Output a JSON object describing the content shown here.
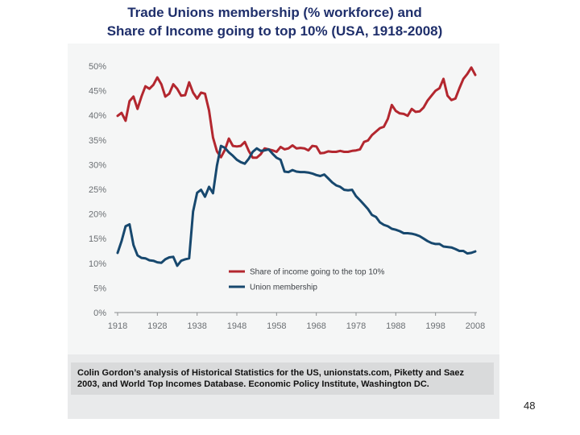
{
  "title_line1": "Trade Unions membership (% workforce) and",
  "title_line2": "Share of Income going to top 10% (USA, 1918-2008)",
  "source": "Colin Gordon’s analysis of Historical Statistics for the US, unionstats.com, Piketty and Saez 2003, and World Top Incomes Database. Economic Policy Institute, Washington DC.",
  "page_number": "48",
  "chart_data": {
    "type": "line",
    "xlim": [
      1918,
      2008
    ],
    "ylim": [
      0,
      50
    ],
    "x_ticks": [
      "1918",
      "1928",
      "1938",
      "1948",
      "1958",
      "1968",
      "1978",
      "1988",
      "1998",
      "2008"
    ],
    "y_ticks": [
      "0%",
      "5%",
      "10%",
      "15%",
      "20%",
      "25%",
      "30%",
      "35%",
      "40%",
      "45%",
      "50%"
    ],
    "legend_position": "center-right",
    "grid": false,
    "series": [
      {
        "name": "Share of income going to the top 10%",
        "color": "#b3272f",
        "x": [
          1918,
          1919,
          1920,
          1921,
          1922,
          1923,
          1924,
          1925,
          1926,
          1927,
          1928,
          1929,
          1930,
          1931,
          1932,
          1933,
          1934,
          1935,
          1936,
          1937,
          1938,
          1939,
          1940,
          1941,
          1942,
          1943,
          1944,
          1945,
          1946,
          1947,
          1948,
          1949,
          1950,
          1951,
          1952,
          1953,
          1954,
          1955,
          1956,
          1957,
          1958,
          1959,
          1960,
          1961,
          1962,
          1963,
          1964,
          1965,
          1966,
          1967,
          1968,
          1969,
          1970,
          1971,
          1972,
          1973,
          1974,
          1975,
          1976,
          1977,
          1978,
          1979,
          1980,
          1981,
          1982,
          1983,
          1984,
          1985,
          1986,
          1987,
          1988,
          1989,
          1990,
          1991,
          1992,
          1993,
          1994,
          1995,
          1996,
          1997,
          1998,
          1999,
          2000,
          2001,
          2002,
          2003,
          2004,
          2005,
          2006,
          2007,
          2008
        ],
        "values": [
          39.9,
          40.5,
          38.9,
          42.9,
          43.8,
          41.3,
          43.8,
          45.9,
          45.4,
          46.2,
          47.7,
          46.3,
          43.8,
          44.4,
          46.3,
          45.4,
          44.0,
          44.1,
          46.7,
          44.6,
          43.4,
          44.6,
          44.4,
          41.0,
          35.5,
          32.7,
          31.5,
          33.0,
          35.3,
          33.8,
          33.7,
          33.8,
          34.6,
          32.8,
          31.4,
          31.4,
          32.1,
          33.3,
          33.1,
          32.9,
          32.6,
          33.6,
          33.1,
          33.3,
          33.9,
          33.3,
          33.4,
          33.3,
          32.9,
          33.8,
          33.7,
          32.3,
          32.4,
          32.7,
          32.6,
          32.6,
          32.8,
          32.6,
          32.6,
          32.8,
          32.9,
          33.1,
          34.6,
          34.9,
          36.0,
          36.7,
          37.4,
          37.7,
          39.3,
          42.1,
          40.9,
          40.4,
          40.3,
          39.9,
          41.3,
          40.7,
          40.8,
          41.6,
          43.0,
          44.0,
          45.0,
          45.5,
          47.4,
          44.0,
          43.1,
          43.4,
          45.5,
          47.4,
          48.4,
          49.7,
          48.2
        ]
      },
      {
        "name": "Union membership",
        "color": "#17486e",
        "x": [
          1918,
          1919,
          1920,
          1921,
          1922,
          1923,
          1924,
          1925,
          1926,
          1927,
          1928,
          1929,
          1930,
          1931,
          1932,
          1933,
          1934,
          1935,
          1936,
          1937,
          1938,
          1939,
          1940,
          1941,
          1942,
          1943,
          1944,
          1945,
          1946,
          1947,
          1948,
          1949,
          1950,
          1951,
          1952,
          1953,
          1954,
          1955,
          1956,
          1957,
          1958,
          1959,
          1960,
          1961,
          1962,
          1963,
          1964,
          1965,
          1966,
          1967,
          1968,
          1969,
          1970,
          1971,
          1972,
          1973,
          1974,
          1975,
          1976,
          1977,
          1978,
          1979,
          1980,
          1981,
          1982,
          1983,
          1984,
          1985,
          1986,
          1987,
          1988,
          1989,
          1990,
          1991,
          1992,
          1993,
          1994,
          1995,
          1996,
          1997,
          1998,
          1999,
          2000,
          2001,
          2002,
          2003,
          2004,
          2005,
          2006,
          2007,
          2008
        ],
        "values": [
          12.1,
          14.5,
          17.5,
          17.9,
          13.7,
          11.6,
          11.1,
          11.0,
          10.6,
          10.5,
          10.2,
          10.1,
          10.8,
          11.2,
          11.3,
          9.5,
          10.5,
          10.8,
          11.0,
          20.5,
          24.3,
          24.9,
          23.5,
          25.5,
          24.2,
          29.8,
          33.8,
          33.4,
          32.5,
          31.8,
          31.0,
          30.5,
          30.2,
          31.2,
          32.6,
          33.3,
          32.8,
          32.9,
          33.1,
          32.2,
          31.4,
          31.0,
          28.6,
          28.5,
          28.9,
          28.6,
          28.5,
          28.5,
          28.4,
          28.2,
          27.9,
          27.7,
          28.0,
          27.2,
          26.4,
          25.8,
          25.5,
          24.9,
          24.8,
          24.9,
          23.6,
          22.8,
          21.9,
          21.0,
          19.8,
          19.4,
          18.3,
          17.8,
          17.5,
          17.0,
          16.8,
          16.5,
          16.1,
          16.1,
          16.0,
          15.8,
          15.5,
          15.0,
          14.5,
          14.1,
          13.9,
          13.9,
          13.4,
          13.3,
          13.2,
          12.9,
          12.5,
          12.5,
          12.0,
          12.1,
          12.4
        ]
      }
    ]
  }
}
